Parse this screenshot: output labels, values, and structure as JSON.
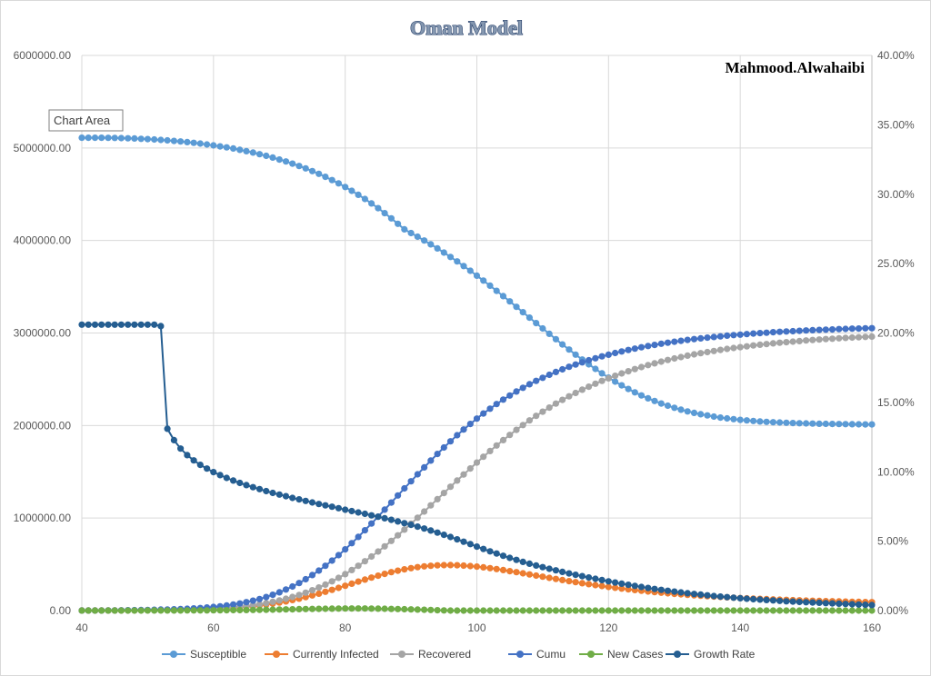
{
  "chart_data": {
    "type": "line",
    "title": "Oman Model",
    "annotation": "Mahmood.Alwahaibi",
    "tooltip": "Chart Area",
    "x_range": [
      40,
      160
    ],
    "x_ticks": [
      "40",
      "60",
      "80",
      "100",
      "120",
      "140",
      "160"
    ],
    "y_left_range": [
      0,
      6000000
    ],
    "y_left_ticks": [
      "0.00",
      "1000000.00",
      "2000000.00",
      "3000000.00",
      "4000000.00",
      "5000000.00",
      "6000000.00"
    ],
    "y_right_range": [
      0,
      0.4
    ],
    "y_right_ticks": [
      "0.00%",
      "5.00%",
      "10.00%",
      "15.00%",
      "20.00%",
      "25.00%",
      "30.00%",
      "35.00%",
      "40.00%"
    ],
    "legend_position": "bottom",
    "x": [
      40,
      41,
      42,
      43,
      44,
      45,
      46,
      47,
      48,
      49,
      50,
      51,
      52,
      53,
      54,
      55,
      56,
      57,
      58,
      59,
      60,
      61,
      62,
      63,
      64,
      65,
      66,
      67,
      68,
      69,
      70,
      71,
      72,
      73,
      74,
      75,
      76,
      77,
      78,
      79,
      80,
      81,
      82,
      83,
      84,
      85,
      86,
      87,
      88,
      89,
      90,
      91,
      92,
      93,
      94,
      95,
      96,
      97,
      98,
      99,
      100,
      101,
      102,
      103,
      104,
      105,
      106,
      107,
      108,
      109,
      110,
      111,
      112,
      113,
      114,
      115,
      116,
      117,
      118,
      119,
      120,
      121,
      122,
      123,
      124,
      125,
      126,
      127,
      128,
      129,
      130,
      131,
      132,
      133,
      134,
      135,
      136,
      137,
      138,
      139,
      140,
      141,
      142,
      143,
      144,
      145,
      146,
      147,
      148,
      149,
      150,
      151,
      152,
      153,
      154,
      155,
      156,
      157,
      158,
      159,
      160
    ],
    "series": [
      {
        "name": "Susceptible",
        "color": "#5b9bd5",
        "axis": "left",
        "values": [
          5110000,
          5110000,
          5110000,
          5110000,
          5109000,
          5108000,
          5106000,
          5104000,
          5102000,
          5099000,
          5096000,
          5092000,
          5087000,
          5082000,
          5076000,
          5070000,
          5063000,
          5055000,
          5047000,
          5038000,
          5028000,
          5017000,
          5006000,
          4994000,
          4980000,
          4965000,
          4950000,
          4933000,
          4915000,
          4896000,
          4875000,
          4854000,
          4830000,
          4805000,
          4779000,
          4750000,
          4720000,
          4688000,
          4653000,
          4617000,
          4578000,
          4537000,
          4494000,
          4448000,
          4400000,
          4349000,
          4295000,
          4239000,
          4180000,
          4120000,
          4080000,
          4041000,
          4000000,
          3958000,
          3914000,
          3869000,
          3822000,
          3774000,
          3724000,
          3673000,
          3620000,
          3567000,
          3512000,
          3456000,
          3399000,
          3342000,
          3283000,
          3225000,
          3166000,
          3107000,
          3049000,
          2991000,
          2933000,
          2876000,
          2821000,
          2766000,
          2713000,
          2661000,
          2612000,
          2564000,
          2518000,
          2475000,
          2434000,
          2395000,
          2359000,
          2325000,
          2294000,
          2265000,
          2238000,
          2214000,
          2192000,
          2171000,
          2153000,
          2137000,
          2122000,
          2109000,
          2097000,
          2086000,
          2077000,
          2069000,
          2061000,
          2055000,
          2049000,
          2044000,
          2040000,
          2036000,
          2033000,
          2030000,
          2027000,
          2025000,
          2023000,
          2021000,
          2019000,
          2018000,
          2017000,
          2016000,
          2015000,
          2014000,
          2013000,
          2012000,
          2012000
        ]
      },
      {
        "name": "Currently Infected",
        "color": "#ed7d31",
        "axis": "left",
        "values": [
          500,
          600,
          700,
          800,
          1000,
          1200,
          1400,
          1700,
          2100,
          2500,
          3000,
          3600,
          4400,
          5200,
          6200,
          7500,
          9000,
          10700,
          12700,
          15100,
          17900,
          21200,
          25100,
          29600,
          34900,
          41000,
          48000,
          56000,
          65100,
          75400,
          86900,
          99600,
          113700,
          129000,
          145700,
          163600,
          182700,
          202800,
          223800,
          245500,
          267800,
          290300,
          312800,
          335000,
          356600,
          377300,
          396800,
          414900,
          431300,
          446000,
          458700,
          469400,
          478000,
          484500,
          488900,
          491200,
          491500,
          489900,
          486500,
          481500,
          475000,
          467200,
          458300,
          448400,
          437800,
          426600,
          414900,
          402900,
          390700,
          378400,
          366100,
          353900,
          341800,
          329900,
          318300,
          307000,
          296000,
          285400,
          275100,
          265200,
          255700,
          246600,
          237800,
          229500,
          221500,
          213900,
          206600,
          199700,
          193100,
          186900,
          181000,
          175300,
          170000,
          164900,
          160100,
          155500,
          151100,
          147000,
          143100,
          139300,
          135800,
          132400,
          129200,
          126200,
          123300,
          120500,
          117900,
          115400,
          113000,
          110700,
          108500,
          106400,
          104400,
          102500,
          100700,
          98900,
          97300,
          95700,
          94200,
          92700,
          91300
        ]
      },
      {
        "name": "Recovered",
        "color": "#a5a5a5",
        "axis": "left",
        "values": [
          0,
          0,
          0,
          0,
          500,
          1000,
          1500,
          2000,
          2500,
          3000,
          4000,
          5000,
          6000,
          7000,
          8000,
          9000,
          11000,
          13000,
          15000,
          18000,
          21000,
          25000,
          30000,
          36000,
          42000,
          50000,
          59000,
          69000,
          81000,
          95000,
          110000,
          128000,
          147000,
          169000,
          193000,
          220000,
          249000,
          281000,
          316000,
          354000,
          394000,
          438000,
          484000,
          533000,
          584000,
          638000,
          694000,
          753000,
          813000,
          875000,
          939000,
          1004000,
          1070000,
          1137000,
          1204000,
          1271000,
          1338000,
          1405000,
          1471000,
          1536000,
          1600000,
          1663000,
          1724000,
          1784000,
          1842000,
          1898000,
          1953000,
          2005000,
          2055000,
          2104000,
          2150000,
          2194000,
          2237000,
          2277000,
          2316000,
          2352000,
          2387000,
          2420000,
          2452000,
          2482000,
          2510000,
          2537000,
          2563000,
          2587000,
          2610000,
          2632000,
          2653000,
          2672000,
          2691000,
          2708000,
          2725000,
          2740000,
          2755000,
          2769000,
          2782000,
          2794000,
          2806000,
          2817000,
          2828000,
          2838000,
          2847000,
          2856000,
          2865000,
          2873000,
          2880000,
          2888000,
          2895000,
          2901000,
          2907000,
          2913000,
          2919000,
          2924000,
          2929000,
          2934000,
          2938000,
          2943000,
          2947000,
          2951000,
          2954000,
          2958000,
          2961000
        ]
      },
      {
        "name": "Cumu",
        "color": "#4472c4",
        "axis": "left",
        "values": [
          500,
          600,
          700,
          800,
          1500,
          2200,
          2900,
          3700,
          4600,
          5500,
          7000,
          8600,
          10400,
          12200,
          14200,
          16500,
          20000,
          23700,
          27700,
          33100,
          38900,
          46200,
          55100,
          65600,
          76900,
          91000,
          107000,
          125000,
          146100,
          170400,
          196900,
          227600,
          260700,
          298000,
          338700,
          383600,
          431700,
          483800,
          539800,
          599500,
          661800,
          728300,
          796800,
          868000,
          940600,
          1015300,
          1090800,
          1167900,
          1244300,
          1321000,
          1397700,
          1473400,
          1548000,
          1621500,
          1692900,
          1762200,
          1829500,
          1894900,
          1957500,
          2017500,
          2075000,
          2130200,
          2182300,
          2232400,
          2279800,
          2324600,
          2367900,
          2407900,
          2445700,
          2482400,
          2516100,
          2547900,
          2578800,
          2606900,
          2634300,
          2659000,
          2683000,
          2705400,
          2727100,
          2747200,
          2765700,
          2783600,
          2800800,
          2816500,
          2831500,
          2845900,
          2859600,
          2871700,
          2884100,
          2894900,
          2906000,
          2915300,
          2925000,
          2933900,
          2942100,
          2949500,
          2957100,
          2964000,
          2971100,
          2977300,
          2982800,
          2988400,
          2994200,
          2999200,
          3003300,
          3008500,
          3012900,
          3016400,
          3020000,
          3023700,
          3027500,
          3030400,
          3033400,
          3036500,
          3038700,
          3041900,
          3044300,
          3046700,
          3048200,
          3050700,
          3052300
        ]
      },
      {
        "name": "New Cases",
        "color": "#70ad47",
        "axis": "left",
        "values": [
          0,
          100,
          100,
          100,
          200,
          200,
          200,
          300,
          400,
          400,
          500,
          600,
          800,
          800,
          1000,
          1300,
          1500,
          1700,
          2000,
          2400,
          2800,
          3300,
          3900,
          4500,
          5300,
          6100,
          7000,
          8000,
          9100,
          10300,
          11500,
          12700,
          14100,
          15300,
          16700,
          17900,
          19100,
          20100,
          21000,
          21700,
          22300,
          22500,
          22500,
          22200,
          21600,
          20700,
          19500,
          18100,
          16400,
          14700,
          12700,
          10700,
          8600,
          6500,
          4400,
          2300,
          300,
          0,
          0,
          0,
          0,
          0,
          0,
          0,
          0,
          0,
          0,
          0,
          0,
          0,
          0,
          0,
          0,
          0,
          0,
          0,
          0,
          0,
          0,
          0,
          0,
          0,
          0,
          0,
          0,
          0,
          0,
          0,
          0,
          0,
          0,
          0,
          0,
          0,
          0,
          0,
          0,
          0,
          0,
          0,
          0,
          0,
          0,
          0,
          0,
          0,
          0,
          0,
          0,
          0,
          0,
          0,
          0,
          0,
          0,
          0,
          0,
          0,
          0,
          0,
          0
        ]
      },
      {
        "name": "Growth Rate",
        "color": "#255e91",
        "axis": "right",
        "values": [
          0.206,
          0.206,
          0.206,
          0.206,
          0.206,
          0.206,
          0.206,
          0.206,
          0.206,
          0.206,
          0.206,
          0.206,
          0.205,
          0.131,
          0.1228,
          0.1167,
          0.112,
          0.1082,
          0.105,
          0.1023,
          0.0998,
          0.0976,
          0.0956,
          0.0937,
          0.092,
          0.0904,
          0.0889,
          0.0875,
          0.0861,
          0.0848,
          0.0836,
          0.0824,
          0.0812,
          0.0801,
          0.079,
          0.0779,
          0.0768,
          0.0758,
          0.0748,
          0.0738,
          0.0727,
          0.0717,
          0.0707,
          0.0697,
          0.0686,
          0.0676,
          0.0665,
          0.0654,
          0.0642,
          0.063,
          0.0618,
          0.0605,
          0.0591,
          0.0577,
          0.0562,
          0.0546,
          0.053,
          0.0513,
          0.0496,
          0.0479,
          0.0461,
          0.0444,
          0.0427,
          0.0411,
          0.0395,
          0.038,
          0.0365,
          0.0351,
          0.0338,
          0.0325,
          0.0313,
          0.0301,
          0.029,
          0.0279,
          0.0268,
          0.0258,
          0.0248,
          0.0238,
          0.0229,
          0.022,
          0.0211,
          0.0202,
          0.0194,
          0.0186,
          0.0178,
          0.017,
          0.0163,
          0.0156,
          0.0149,
          0.0143,
          0.0137,
          0.0131,
          0.0125,
          0.012,
          0.0115,
          0.011,
          0.0105,
          0.0101,
          0.0097,
          0.0093,
          0.0089,
          0.0085,
          0.0082,
          0.0079,
          0.0076,
          0.0073,
          0.007,
          0.0067,
          0.0065,
          0.0062,
          0.006,
          0.0058,
          0.0056,
          0.0054,
          0.0052,
          0.005,
          0.0048,
          0.0046,
          0.0044,
          0.0042,
          0.004
        ]
      }
    ]
  }
}
